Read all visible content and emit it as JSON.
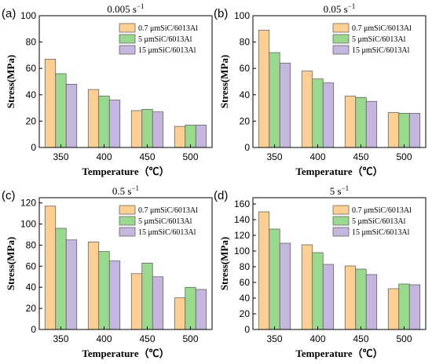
{
  "figure": {
    "colors": [
      "#FCCF95",
      "#9AD88F",
      "#C5B6DD"
    ],
    "legend_labels": [
      "0.7 μmSiC/6013Al",
      "5 μmSiC/6013Al",
      "15 μmSiC/6013Al"
    ]
  },
  "chart_data": [
    {
      "type": "bar",
      "panel": "(a)",
      "title": "0.005  s",
      "title_sup": "−1",
      "categories": [
        "350",
        "400",
        "450",
        "500"
      ],
      "series": [
        {
          "name": "0.7 μmSiC/6013Al",
          "values": [
            67,
            44,
            28,
            16
          ]
        },
        {
          "name": "5 μmSiC/6013Al",
          "values": [
            56,
            39,
            29,
            17
          ]
        },
        {
          "name": "15 μmSiC/6013Al",
          "values": [
            48,
            36,
            27,
            17
          ]
        }
      ],
      "ylim": [
        0,
        100
      ],
      "yticks": [
        0,
        20,
        40,
        60,
        80,
        100
      ],
      "xlabel": "Temperature（℃）",
      "ylabel": "Stress(MPa)",
      "legend": "top-right",
      "grid": false
    },
    {
      "type": "bar",
      "panel": "(b)",
      "title": "0.05  s",
      "title_sup": "−1",
      "categories": [
        "350",
        "400",
        "450",
        "500"
      ],
      "series": [
        {
          "name": "0.7 μmSiC/6013Al",
          "values": [
            89,
            58,
            39,
            26.5
          ]
        },
        {
          "name": "5 μmSiC/6013Al",
          "values": [
            72,
            52,
            38,
            26
          ]
        },
        {
          "name": "15 μmSiC/6013Al",
          "values": [
            64,
            49,
            35,
            26
          ]
        }
      ],
      "ylim": [
        0,
        100
      ],
      "yticks": [
        0,
        20,
        40,
        60,
        80,
        100
      ],
      "xlabel": "Temperature（℃）",
      "ylabel": "Stress(MPa)",
      "legend": "top-right",
      "grid": false
    },
    {
      "type": "bar",
      "panel": "(c)",
      "title": "0.5  s",
      "title_sup": "−1",
      "categories": [
        "350",
        "400",
        "450",
        "500"
      ],
      "series": [
        {
          "name": "0.7 μmSiC/6013Al",
          "values": [
            117,
            83,
            53,
            30
          ]
        },
        {
          "name": "5 μmSiC/6013Al",
          "values": [
            96,
            74,
            63,
            40
          ]
        },
        {
          "name": "15 μmSiC/6013Al",
          "values": [
            85,
            65,
            50,
            38
          ]
        }
      ],
      "ylim": [
        0,
        125
      ],
      "yticks": [
        0,
        20,
        40,
        60,
        80,
        100,
        120
      ],
      "xlabel": "Temperature（℃）",
      "ylabel": "Stress(MPa)",
      "legend": "top-right",
      "grid": false
    },
    {
      "type": "bar",
      "panel": "(d)",
      "title": "5  s",
      "title_sup": "−1",
      "categories": [
        "350",
        "400",
        "450",
        "500"
      ],
      "series": [
        {
          "name": "0.7 μmSiC/6013Al",
          "values": [
            150,
            108,
            81,
            52
          ]
        },
        {
          "name": "5 μmSiC/6013Al",
          "values": [
            128,
            98,
            77,
            58
          ]
        },
        {
          "name": "15 μmSiC/6013Al",
          "values": [
            110,
            83,
            70,
            57
          ]
        }
      ],
      "ylim": [
        0,
        168
      ],
      "yticks": [
        0,
        20,
        40,
        60,
        80,
        100,
        120,
        140,
        160
      ],
      "xlabel": "Temperature（℃）",
      "ylabel": "Stress(MPa)",
      "legend": "top-right",
      "grid": false
    }
  ]
}
